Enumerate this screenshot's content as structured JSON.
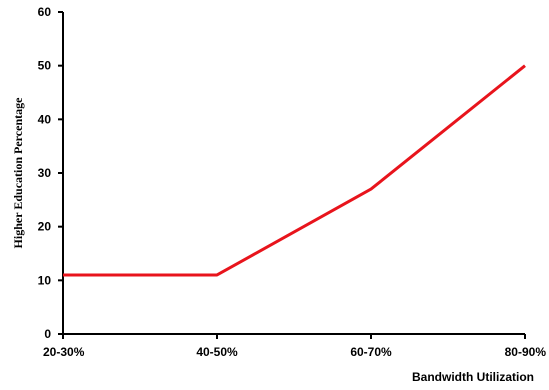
{
  "chart_data": {
    "type": "line",
    "title": "",
    "xlabel": "Bandwidth Utilization",
    "ylabel": "Higher Education Percentage",
    "categories": [
      "20-30%",
      "40-50%",
      "60-70%",
      "80-90%"
    ],
    "series": [
      {
        "values": [
          11,
          11,
          27,
          50
        ]
      }
    ],
    "ylim": [
      0,
      60
    ],
    "yticks": [
      "0",
      "10",
      "20",
      "30",
      "40",
      "50",
      "60"
    ],
    "grid": false,
    "line_color": "#e8141c"
  }
}
